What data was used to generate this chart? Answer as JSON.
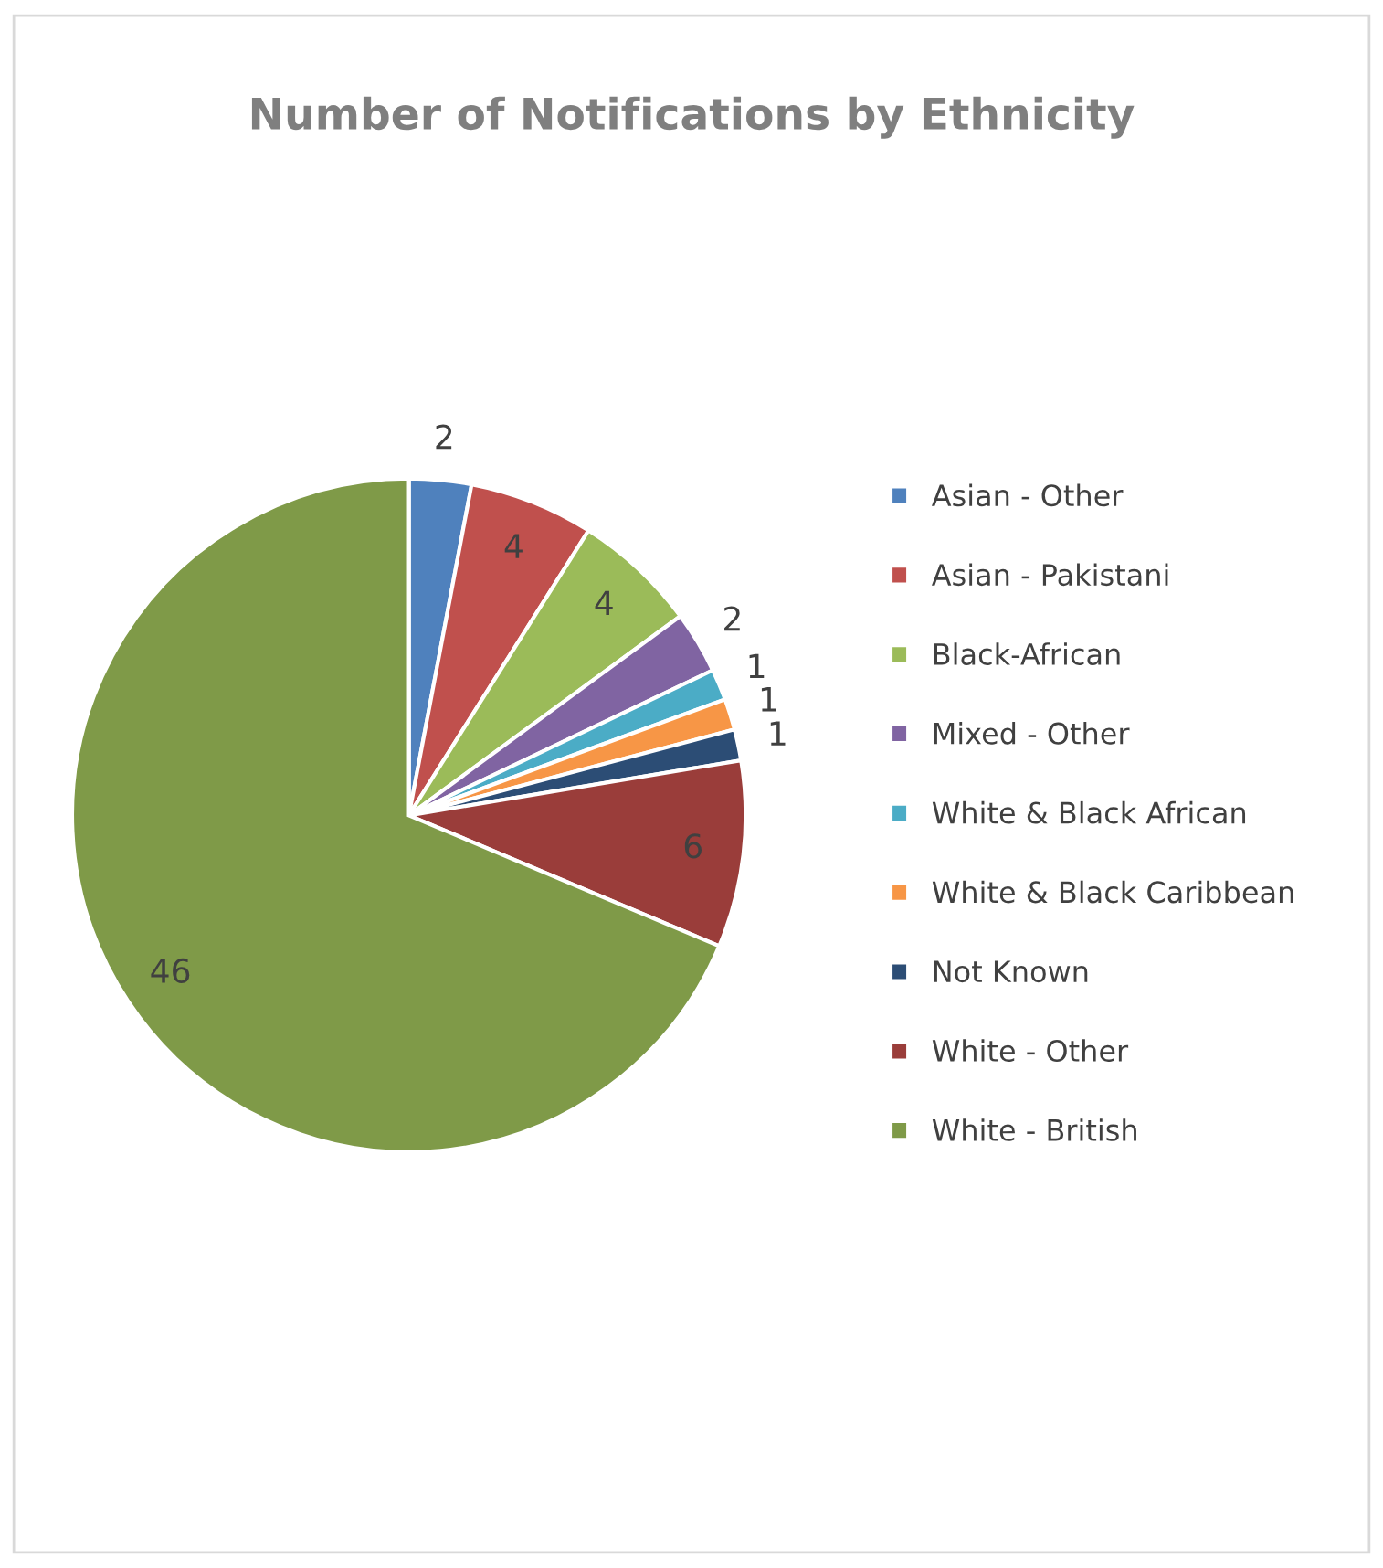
{
  "chart_data": {
    "type": "pie",
    "title": "Number of Notifications by Ethnicity",
    "categories": [
      "Asian - Other",
      "Asian - Pakistani",
      "Black-African",
      "Mixed - Other",
      "White & Black African",
      "White & Black Caribbean",
      "Not Known",
      "White - Other",
      "White - British"
    ],
    "values": [
      2,
      4,
      4,
      2,
      1,
      1,
      1,
      6,
      46
    ],
    "colors": [
      "#4f81bd",
      "#c0504d",
      "#9bbb59",
      "#8064a2",
      "#4bacc6",
      "#f79646",
      "#2c4d75",
      "#9a3d3a",
      "#7f9a48"
    ],
    "data_labels": true,
    "legend": "right"
  }
}
